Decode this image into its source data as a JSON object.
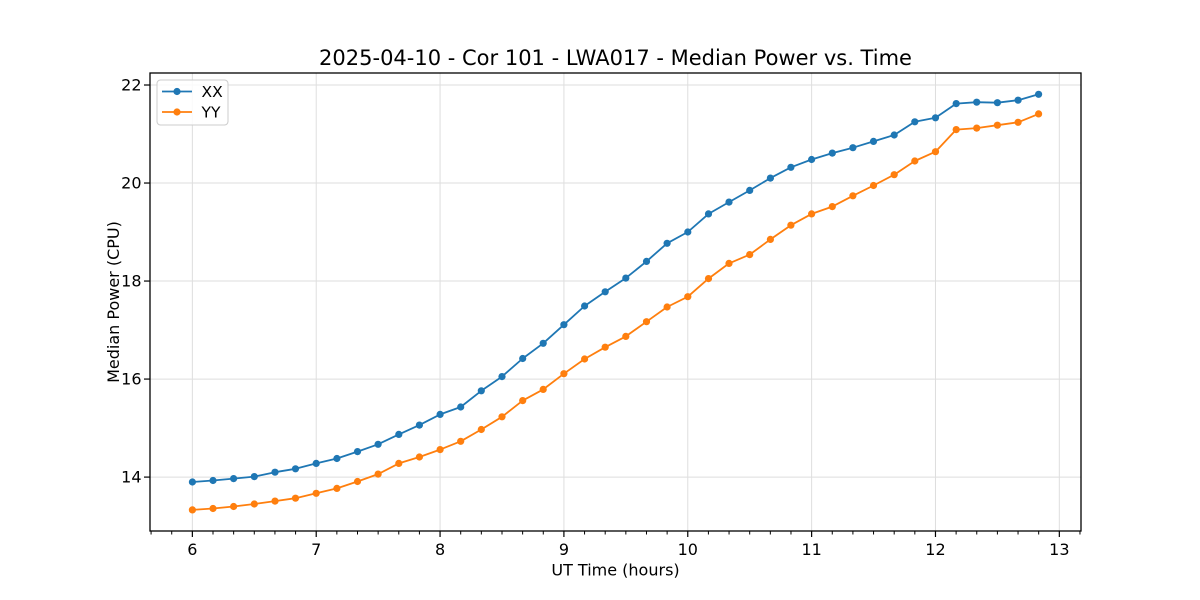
{
  "figure": {
    "background": "#ffffff",
    "grid_color": "#dedede",
    "spine_color": "#000000",
    "tick_color": "#000000",
    "legend_border_color": "#cccccc",
    "legend_background": "#ffffff"
  },
  "chart_data": {
    "type": "line",
    "title": "2025-04-10 - Cor 101 - LWA017 - Median Power vs. Time",
    "xlabel": "UT Time (hours)",
    "ylabel": "Median Power (CPU)",
    "xlim": [
      5.658,
      13.175
    ],
    "ylim": [
      12.9,
      22.245
    ],
    "xticks": [
      6,
      7,
      8,
      9,
      10,
      11,
      12,
      13
    ],
    "yticks": [
      14,
      16,
      18,
      20,
      22
    ],
    "x_minor_tick_step": 0.1667,
    "grid": true,
    "legend": {
      "position": "upper-left",
      "entries": [
        "XX",
        "YY"
      ]
    },
    "x": [
      6,
      6.167,
      6.333,
      6.5,
      6.667,
      6.833,
      7,
      7.167,
      7.333,
      7.5,
      7.667,
      7.833,
      8,
      8.167,
      8.333,
      8.5,
      8.667,
      8.833,
      9,
      9.167,
      9.333,
      9.5,
      9.667,
      9.833,
      10,
      10.167,
      10.333,
      10.5,
      10.667,
      10.833,
      11,
      11.167,
      11.333,
      11.5,
      11.667,
      11.833,
      12,
      12.167,
      12.333,
      12.5,
      12.667,
      12.833
    ],
    "series": [
      {
        "name": "XX",
        "color": "#1f77b4",
        "marker": "circle",
        "values": [
          13.9,
          13.93,
          13.97,
          14.01,
          14.1,
          14.17,
          14.28,
          14.38,
          14.52,
          14.67,
          14.87,
          15.06,
          15.28,
          15.43,
          15.76,
          16.05,
          16.42,
          16.73,
          17.11,
          17.49,
          17.78,
          18.06,
          18.4,
          18.77,
          19.0,
          19.37,
          19.61,
          19.85,
          20.1,
          20.32,
          20.48,
          20.61,
          20.72,
          20.85,
          20.98,
          21.25,
          21.33,
          21.62,
          21.65,
          21.64,
          21.69,
          21.81
        ]
      },
      {
        "name": "YY",
        "color": "#ff7f0e",
        "marker": "circle",
        "values": [
          13.33,
          13.36,
          13.4,
          13.45,
          13.51,
          13.57,
          13.67,
          13.77,
          13.91,
          14.06,
          14.28,
          14.41,
          14.56,
          14.73,
          14.97,
          15.23,
          15.56,
          15.79,
          16.11,
          16.41,
          16.65,
          16.87,
          17.17,
          17.47,
          17.68,
          18.05,
          18.36,
          18.54,
          18.85,
          19.14,
          19.37,
          19.52,
          19.74,
          19.95,
          20.17,
          20.45,
          20.64,
          21.09,
          21.12,
          21.18,
          21.24,
          21.41
        ]
      }
    ]
  }
}
